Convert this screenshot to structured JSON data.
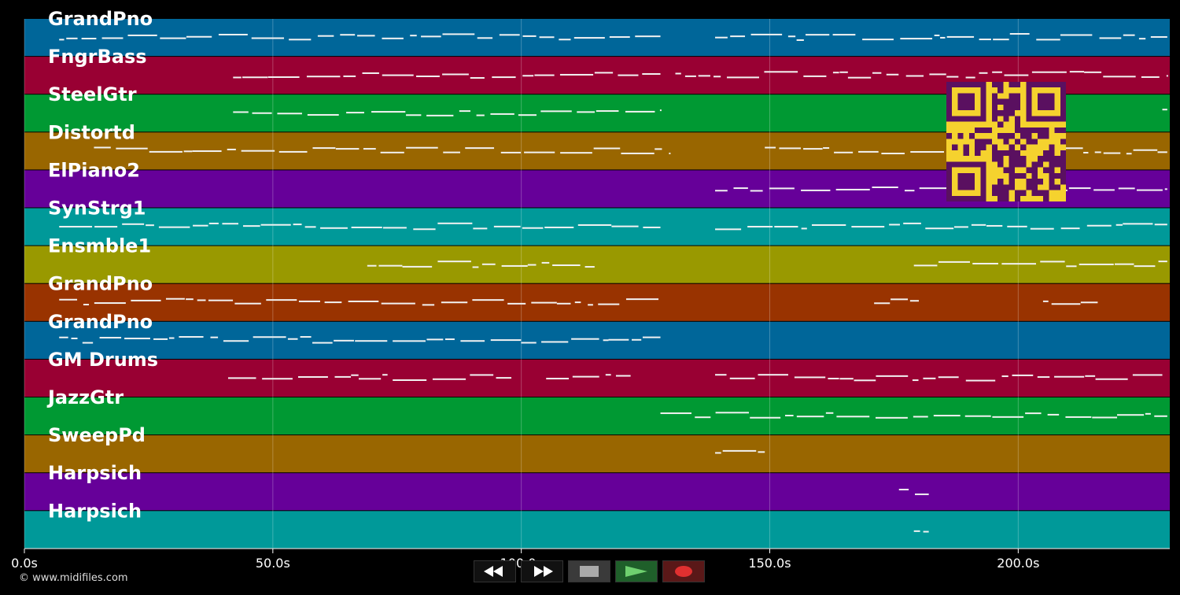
{
  "tracks": [
    {
      "name": "GrandPno",
      "color": "#006699"
    },
    {
      "name": "FngrBass",
      "color": "#990033"
    },
    {
      "name": "SteelGtr",
      "color": "#009933"
    },
    {
      "name": "Distortd",
      "color": "#996600"
    },
    {
      "name": "ElPiano2",
      "color": "#660099"
    },
    {
      "name": "SynStrg1",
      "color": "#009999"
    },
    {
      "name": "Ensmble1",
      "color": "#999900"
    },
    {
      "name": "GrandPno",
      "color": "#993300"
    },
    {
      "name": "GrandPno",
      "color": "#006699"
    },
    {
      "name": "GM Drums",
      "color": "#990033"
    },
    {
      "name": "JazzGtr",
      "color": "#009933"
    },
    {
      "name": "SweepPd",
      "color": "#996600"
    },
    {
      "name": "Harpsich",
      "color": "#660099"
    },
    {
      "name": "Harpsich",
      "color": "#009999"
    }
  ],
  "timeline": {
    "ticks": [
      "0.0s",
      "50.0s",
      "100.0s",
      "150.0s",
      "200.0s"
    ],
    "tick_values": [
      0,
      50,
      100,
      150,
      200
    ],
    "range_seconds": [
      0,
      230.5
    ]
  },
  "transport": {
    "rewind_icon": "rewind-icon",
    "forward_icon": "fast-forward-icon",
    "stop_icon": "stop-icon",
    "play_icon": "play-icon",
    "record_icon": "record-icon"
  },
  "footer": {
    "credit": "© www.midifiles.com"
  },
  "colors": {
    "background": "#000000",
    "qr_fg": "#5a1060",
    "qr_bg": "#f5d22e",
    "note": "#ffffff"
  }
}
